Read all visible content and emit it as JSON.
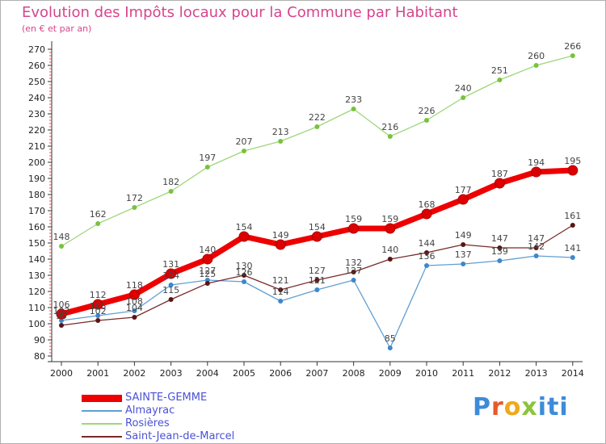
{
  "chart_data": {
    "type": "line",
    "title": "Evolution des Impôts locaux pour la Commune par Habitant",
    "subtitle": "(en € et par an)",
    "x": [
      "2000",
      "2001",
      "2002",
      "2003",
      "2004",
      "2005",
      "2006",
      "2007",
      "2008",
      "2009",
      "2010",
      "2011",
      "2012",
      "2013",
      "2014"
    ],
    "yticks": [
      80,
      90,
      100,
      110,
      120,
      130,
      140,
      150,
      160,
      170,
      180,
      190,
      200,
      210,
      220,
      230,
      240,
      250,
      260,
      270
    ],
    "ylim": [
      80,
      270
    ],
    "grid": false,
    "legend_position": "bottom-left",
    "series": [
      {
        "name": "SAINTE-GEMME",
        "color": "#ee0000",
        "width": 7,
        "marker": "#dd0000",
        "values": [
          106,
          112,
          118,
          131,
          140,
          154,
          149,
          154,
          159,
          159,
          168,
          177,
          187,
          194,
          195
        ],
        "labels": [
          "106",
          "112",
          "118",
          "131",
          "140",
          "154",
          "149",
          "154",
          "159",
          "159",
          "168",
          "177",
          "187",
          "194",
          "195"
        ]
      },
      {
        "name": "Almayrac",
        "color": "#5f9fd3",
        "width": 1.3,
        "marker": "#3f86cc",
        "values": [
          102,
          105,
          108,
          124,
          127,
          126,
          114,
          121,
          127,
          85,
          136,
          137,
          139,
          142,
          141
        ],
        "labels": [
          "102",
          "105",
          "108",
          "124",
          "127",
          "126",
          "114",
          "121",
          "127",
          "85",
          "136",
          "137",
          "139",
          "142",
          "141"
        ]
      },
      {
        "name": "Rosières",
        "color": "#9fd67a",
        "width": 1.3,
        "marker": "#79c23d",
        "values": [
          148,
          162,
          172,
          182,
          197,
          207,
          213,
          222,
          233,
          216,
          226,
          240,
          251,
          260,
          266
        ],
        "labels": [
          "148",
          "162",
          "172",
          "182",
          "197",
          "207",
          "213",
          "222",
          "233",
          "216",
          "226",
          "240",
          "251",
          "260",
          "266"
        ]
      },
      {
        "name": "Saint-Jean-de-Marcel",
        "color": "#7a2a2a",
        "width": 1.3,
        "marker": "#5a1414",
        "values": [
          99,
          102,
          104,
          115,
          125,
          130,
          121,
          127,
          132,
          140,
          144,
          149,
          147,
          147,
          161
        ],
        "labels": [
          "99",
          "102",
          "104",
          "115",
          "125",
          "130",
          "121",
          "127",
          "132",
          "140",
          "144",
          "149",
          "147",
          "147",
          "161"
        ]
      }
    ]
  },
  "logo": {
    "p1": "P",
    "p2": "r",
    "p3": "o",
    "p4": "x",
    "p5": "iti"
  }
}
